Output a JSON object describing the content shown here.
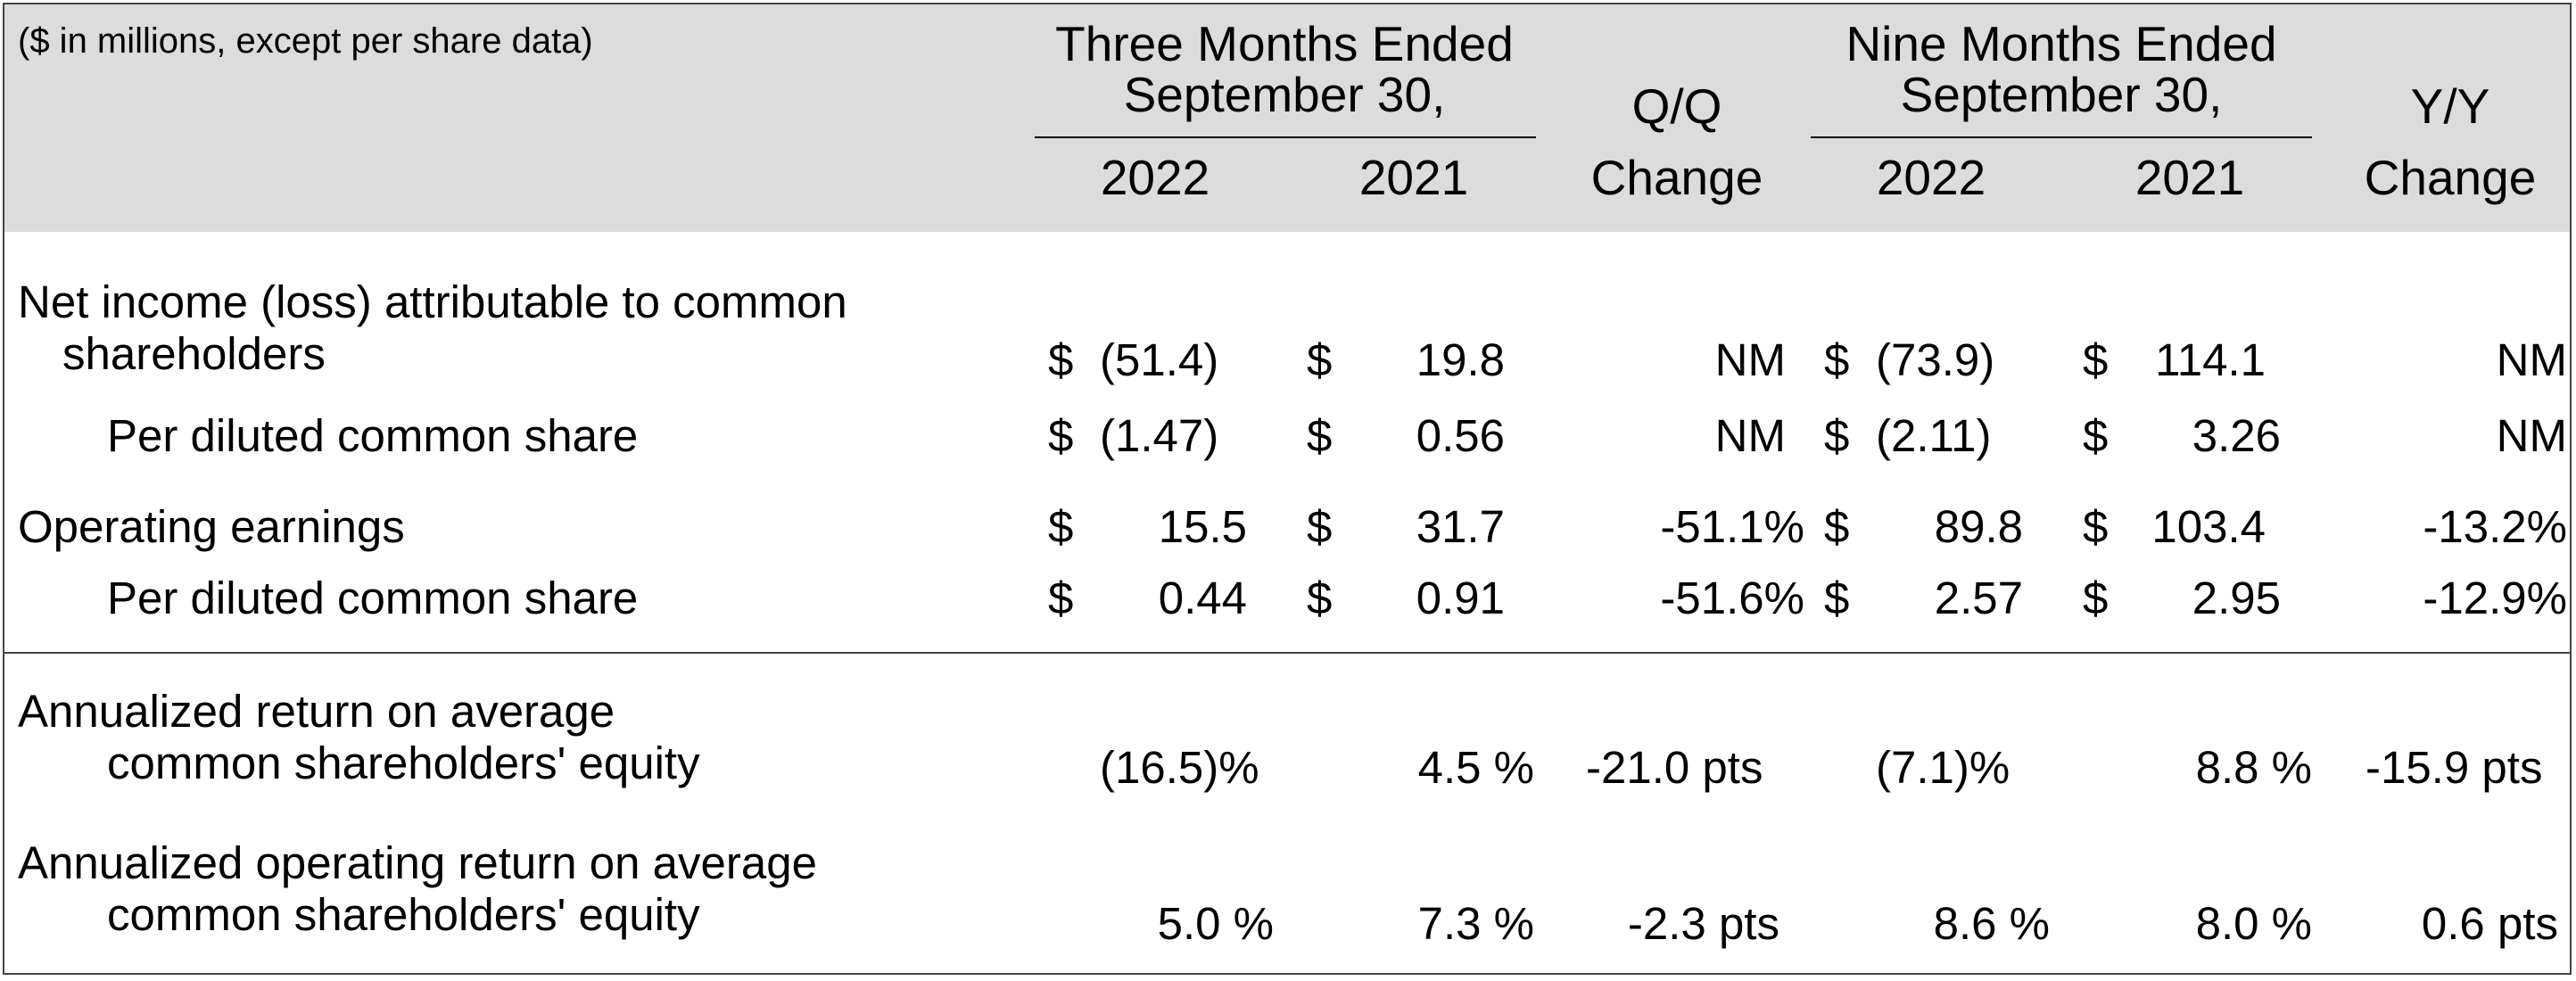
{
  "header": {
    "unit_note": "($ in millions, except per share data)",
    "three_months_line1": "Three Months Ended",
    "three_months_line2": "September 30,",
    "nine_months_line1": "Nine Months Ended",
    "nine_months_line2": "September 30,",
    "qq_line1": "Q/Q",
    "qq_line2": "Change",
    "yy_line1": "Y/Y",
    "yy_line2": "Change",
    "years": [
      "2022",
      "2021",
      "2022",
      "2021"
    ]
  },
  "rows": [
    {
      "label_line1": "Net income (loss) attributable to common",
      "label_line2": "shareholders",
      "cur_sym": [
        "$",
        "$",
        "$",
        "$"
      ],
      "q3_2022": "(51.4)",
      "q3_2021": "19.8",
      "qq_change": "NM",
      "ytd_2022": "(73.9)",
      "ytd_2021": "114.1",
      "yy_change": "NM"
    },
    {
      "label": "Per diluted common share",
      "cur_sym": [
        "$",
        "$",
        "$",
        "$"
      ],
      "q3_2022": "(1.47)",
      "q3_2021": "0.56",
      "qq_change": "NM",
      "ytd_2022": "(2.11)",
      "ytd_2021": "3.26",
      "yy_change": "NM"
    },
    {
      "label": "Operating earnings",
      "cur_sym": [
        "$",
        "$",
        "$",
        "$"
      ],
      "q3_2022": "15.5",
      "q3_2021": "31.7",
      "qq_change": "-51.1%",
      "ytd_2022": "89.8",
      "ytd_2021": "103.4",
      "yy_change": "-13.2%"
    },
    {
      "label": "Per diluted common share",
      "cur_sym": [
        "$",
        "$",
        "$",
        "$"
      ],
      "q3_2022": "0.44",
      "q3_2021": "0.91",
      "qq_change": "-51.6%",
      "ytd_2022": "2.57",
      "ytd_2021": "2.95",
      "yy_change": "-12.9%"
    },
    {
      "label_line1": "Annualized return on average",
      "label_line2": "common shareholders' equity",
      "q3_2022": "(16.5)%",
      "q3_2021": "4.5 %",
      "qq_change": "-21.0 pts",
      "ytd_2022": "(7.1)%",
      "ytd_2021": "8.8 %",
      "yy_change": "-15.9 pts"
    },
    {
      "label_line1": "Annualized operating return on average",
      "label_line2": "common shareholders' equity",
      "q3_2022": "5.0 %",
      "q3_2021": "7.3 %",
      "qq_change": "-2.3 pts",
      "ytd_2022": "8.6 %",
      "ytd_2021": "8.0 %",
      "yy_change": "0.6 pts"
    }
  ]
}
